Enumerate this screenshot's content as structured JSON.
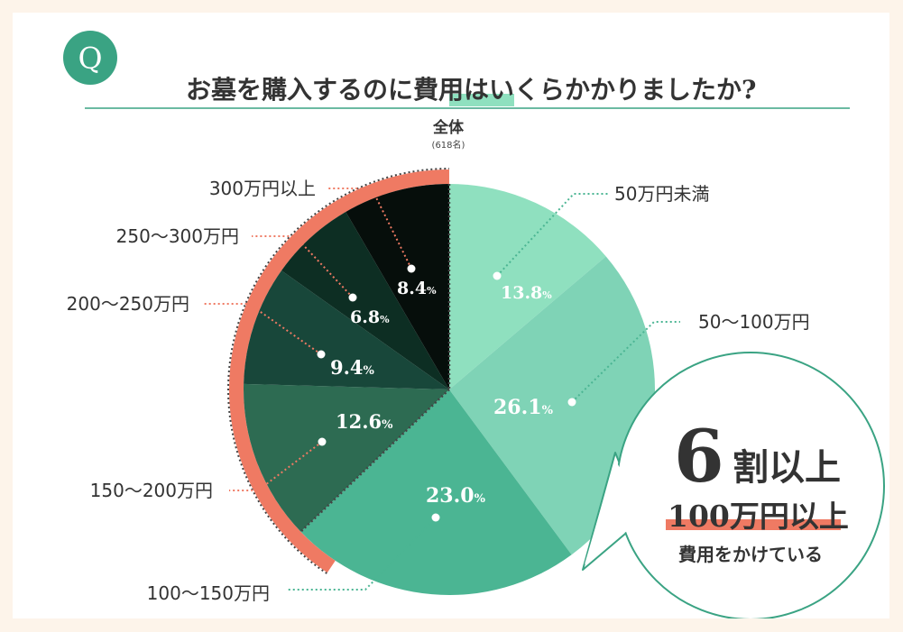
{
  "header": {
    "q_badge": "Q",
    "question": "お墓を購入するのに費用はいくらかかりましたか?"
  },
  "pie_label": {
    "title": "全体",
    "sample": "(618名)"
  },
  "chart_data": {
    "type": "pie",
    "title": "お墓を購入するのに費用はいくらかかりましたか?",
    "subtitle": "全体 (618名)",
    "unit": "%",
    "slices": [
      {
        "label": "50万円未満",
        "value": 13.8,
        "color": "#8fe0bf"
      },
      {
        "label": "50〜100万円",
        "value": 26.1,
        "color": "#7fd3b6"
      },
      {
        "label": "100〜150万円",
        "value": 23.0,
        "color": "#4bb593"
      },
      {
        "label": "150〜200万円",
        "value": 12.6,
        "color": "#2d6b52"
      },
      {
        "label": "200〜250万円",
        "value": 9.4,
        "color": "#18473a"
      },
      {
        "label": "250〜300万円",
        "value": 6.8,
        "color": "#0d2e23"
      },
      {
        "label": "300万円以上",
        "value": 8.4,
        "color": "#060e0b"
      }
    ]
  },
  "callout": {
    "headline_num": "6",
    "headline_text": "割以上",
    "amount": "100万円以上",
    "tail": "費用をかけている"
  },
  "colors": {
    "accent_orange": "#ef7a63",
    "teal": "#4bb593",
    "badge_green": "#3aa383"
  }
}
